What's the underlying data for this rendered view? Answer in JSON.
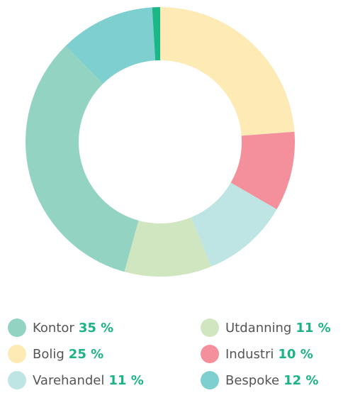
{
  "chart_data": {
    "type": "donut",
    "categories": [
      "Bolig",
      "Industri",
      "Varehandel",
      "Utdanning",
      "Kontor",
      "Bespoke",
      null
    ],
    "values": [
      25,
      10,
      11,
      11,
      35,
      12,
      1
    ],
    "value_labels": [
      "25 %",
      "10 %",
      "11 %",
      "11 %",
      "35 %",
      "12 %",
      null
    ],
    "colors": [
      "#fdeab4",
      "#f4909b",
      "#bfe4e4",
      "#cfe6c0",
      "#92d3c1",
      "#7ecfcf",
      "#19b886"
    ]
  }
}
